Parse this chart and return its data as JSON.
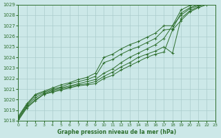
{
  "title": "Graphe pression niveau de la mer (hPa)",
  "bg_color": "#cce8e8",
  "line_color": "#2d6e2d",
  "grid_color": "#aacccc",
  "xlim": [
    0,
    23
  ],
  "ylim": [
    1018,
    1029
  ],
  "xticks": [
    0,
    1,
    2,
    3,
    4,
    5,
    6,
    7,
    8,
    9,
    10,
    11,
    12,
    13,
    14,
    15,
    16,
    17,
    18,
    19,
    20,
    21,
    22,
    23
  ],
  "yticks": [
    1018,
    1019,
    1020,
    1021,
    1022,
    1023,
    1024,
    1025,
    1026,
    1027,
    1028,
    1029
  ],
  "series": [
    [
      1018.0,
      1019.2,
      1019.9,
      1020.5,
      1020.7,
      1020.9,
      1021.1,
      1021.3,
      1021.4,
      1021.5,
      1022.0,
      1022.3,
      1022.8,
      1023.2,
      1023.6,
      1024.0,
      1024.3,
      1024.5,
      1026.6,
      1027.5,
      1028.3,
      1028.7,
      1029.0,
      1029.3
    ],
    [
      1018.1,
      1019.3,
      1020.0,
      1020.5,
      1020.8,
      1021.0,
      1021.2,
      1021.4,
      1021.5,
      1021.7,
      1022.2,
      1022.6,
      1023.1,
      1023.5,
      1024.0,
      1024.3,
      1024.6,
      1025.0,
      1024.4,
      1027.7,
      1028.4,
      1028.8,
      1029.1,
      1029.4
    ],
    [
      1018.2,
      1019.4,
      1020.2,
      1020.6,
      1020.9,
      1021.1,
      1021.3,
      1021.5,
      1021.7,
      1021.9,
      1022.5,
      1022.9,
      1023.5,
      1024.0,
      1024.4,
      1024.8,
      1025.2,
      1025.8,
      1027.0,
      1028.0,
      1028.6,
      1028.9,
      1029.2,
      1029.5
    ],
    [
      1018.3,
      1019.5,
      1020.4,
      1020.7,
      1021.0,
      1021.2,
      1021.5,
      1021.7,
      1021.9,
      1022.2,
      1023.5,
      1023.8,
      1024.3,
      1024.7,
      1025.0,
      1025.4,
      1025.8,
      1026.6,
      1026.7,
      1028.2,
      1028.7,
      1029.0,
      1029.3,
      1029.6
    ],
    [
      1018.4,
      1019.6,
      1020.5,
      1020.8,
      1021.1,
      1021.4,
      1021.6,
      1021.9,
      1022.1,
      1022.5,
      1024.0,
      1024.3,
      1024.8,
      1025.2,
      1025.5,
      1025.9,
      1026.3,
      1027.0,
      1027.0,
      1028.5,
      1028.9,
      1029.2,
      1029.4,
      1029.7
    ]
  ]
}
